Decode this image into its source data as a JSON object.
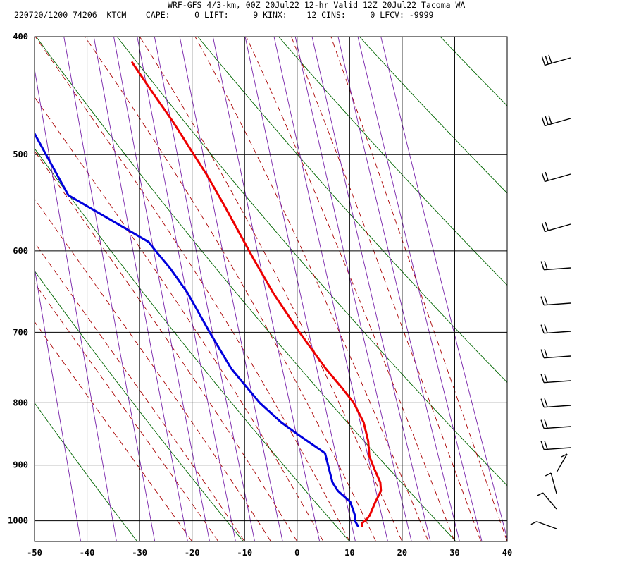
{
  "header": {
    "line1": "WRF-GFS 4/3-km, 00Z 20Jul22 12-hr Valid 12Z 20Jul22 Tacoma WA",
    "line2": "220720/1200 74206  KTCM    CAPE:     0 LIFT:     9 KINX:    12 CINS:     0 LFCV: -9999"
  },
  "chart_data": {
    "type": "line",
    "diagram": "skew-T log-P",
    "title": "WRF-GFS 4/3-km, 00Z 20Jul22 12-hr Valid 12Z 20Jul22 Tacoma WA",
    "xlabel": "",
    "ylabel": "",
    "x_ticks": [
      "-50",
      "-40",
      "-30",
      "-20",
      "-10",
      "0",
      "10",
      "20",
      "30",
      "40"
    ],
    "y_ticks": [
      "400",
      "500",
      "600",
      "700",
      "800",
      "900",
      "1000"
    ],
    "xlim": [
      -50,
      40
    ],
    "ylim": [
      1040,
      400
    ],
    "y_scale": "log",
    "grid": true,
    "colors": {
      "temperature": "#ee0000",
      "dewpoint": "#0000dd",
      "dry_adiabats": "#006600",
      "moist_adiabats": "#aa0000",
      "mixing_ratio": "#7722aa"
    },
    "series": [
      {
        "key": "temperature",
        "points": [
          [
            1010,
            12.6
          ],
          [
            1004,
            12.7
          ],
          [
            998,
            13.5
          ],
          [
            990,
            14.2
          ],
          [
            982,
            14.6
          ],
          [
            965,
            15.5
          ],
          [
            945,
            16.7
          ],
          [
            930,
            16.7
          ],
          [
            910,
            15.9
          ],
          [
            885,
            15.0
          ],
          [
            860,
            15.0
          ],
          [
            830,
            14.4
          ],
          [
            800,
            12.8
          ],
          [
            780,
            11.0
          ],
          [
            750,
            8.0
          ],
          [
            700,
            3.5
          ],
          [
            650,
            -0.9
          ],
          [
            610,
            -4.1
          ],
          [
            580,
            -6.5
          ],
          [
            550,
            -9.0
          ],
          [
            520,
            -11.8
          ],
          [
            470,
            -17.5
          ],
          [
            440,
            -21.6
          ],
          [
            420,
            -24.4
          ]
        ]
      },
      {
        "key": "dewpoint",
        "points": [
          [
            1010,
            11.8
          ],
          [
            1000,
            11.3
          ],
          [
            990,
            11.4
          ],
          [
            965,
            10.7
          ],
          [
            945,
            8.5
          ],
          [
            930,
            7.6
          ],
          [
            915,
            7.3
          ],
          [
            880,
            6.6
          ],
          [
            850,
            1.8
          ],
          [
            830,
            -1.3
          ],
          [
            800,
            -5.1
          ],
          [
            750,
            -10.0
          ],
          [
            700,
            -13.6
          ],
          [
            650,
            -17.2
          ],
          [
            620,
            -20.2
          ],
          [
            600,
            -22.7
          ],
          [
            590,
            -23.9
          ],
          [
            540,
            -38.5
          ],
          [
            480,
            -44.1
          ],
          [
            420,
            -51.5
          ]
        ]
      }
    ]
  }
}
